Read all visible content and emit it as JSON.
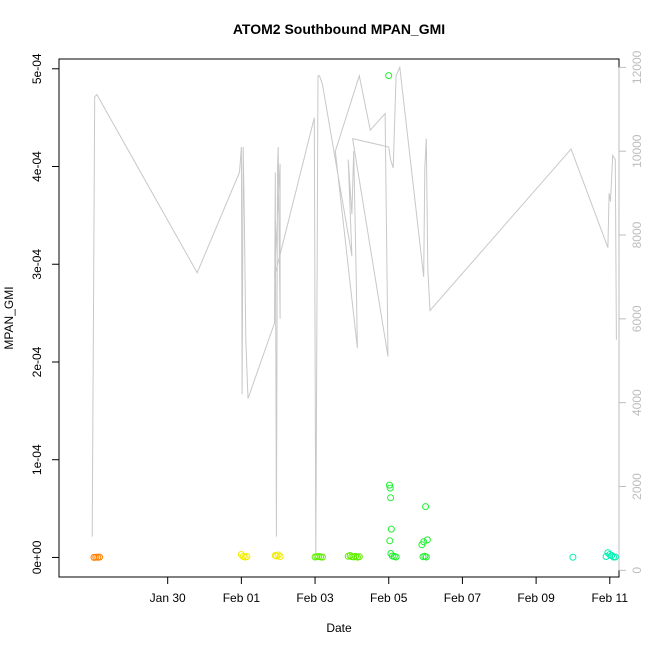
{
  "chart_data": {
    "type": "scatter",
    "title": "ATOM2 Southbound MPAN_GMI",
    "xlabel": "Date",
    "ylabel": "MPAN_GMI",
    "x_axis": {
      "min_day": -2.95,
      "max_day": 12.25,
      "ticks": [
        {
          "day": 0,
          "label": "Jan 30"
        },
        {
          "day": 2,
          "label": "Feb 01"
        },
        {
          "day": 4,
          "label": "Feb 03"
        },
        {
          "day": 6,
          "label": "Feb 05"
        },
        {
          "day": 8,
          "label": "Feb 07"
        },
        {
          "day": 10,
          "label": "Feb 09"
        },
        {
          "day": 12,
          "label": "Feb 11"
        }
      ]
    },
    "y_axis": {
      "min": -2e-05,
      "max": 0.00051,
      "ticks": [
        {
          "value": 0,
          "label": "0e+00"
        },
        {
          "value": 0.0001,
          "label": "1e-04"
        },
        {
          "value": 0.0002,
          "label": "2e-04"
        },
        {
          "value": 0.0003,
          "label": "3e-04"
        },
        {
          "value": 0.0004,
          "label": "4e-04"
        },
        {
          "value": 0.0005,
          "label": "5e-04"
        }
      ]
    },
    "y2_axis": {
      "min": -160,
      "max": 12200,
      "color": "#bdbdbd",
      "ticks": [
        {
          "value": 0,
          "label": "0"
        },
        {
          "value": 2000,
          "label": "2000"
        },
        {
          "value": 4000,
          "label": "4000"
        },
        {
          "value": 6000,
          "label": "6000"
        },
        {
          "value": 8000,
          "label": "8000"
        },
        {
          "value": 10000,
          "label": "10000"
        },
        {
          "value": 12000,
          "label": "12000"
        }
      ]
    },
    "line_series": {
      "color": "#c8c8c8",
      "axis": "y2",
      "points": [
        [
          -2.05,
          800
        ],
        [
          -1.98,
          11300
        ],
        [
          -1.92,
          11350
        ],
        [
          0.8,
          7100
        ],
        [
          1.95,
          9500
        ],
        [
          2.0,
          10100
        ],
        [
          2.02,
          4200
        ],
        [
          2.05,
          10100
        ],
        [
          2.08,
          8500
        ],
        [
          2.12,
          5500
        ],
        [
          2.18,
          4100
        ],
        [
          2.9,
          5900
        ],
        [
          2.92,
          9500
        ],
        [
          2.95,
          800
        ],
        [
          2.98,
          9600
        ],
        [
          3.0,
          10100
        ],
        [
          3.05,
          6000
        ],
        [
          3.05,
          9700
        ],
        [
          2.9,
          7000
        ],
        [
          3.98,
          10800
        ],
        [
          4.02,
          250
        ],
        [
          4.08,
          11800
        ],
        [
          4.12,
          11800
        ],
        [
          4.2,
          11600
        ],
        [
          5.0,
          7500
        ],
        [
          4.9,
          9800
        ],
        [
          5.0,
          8500
        ],
        [
          5.05,
          10000
        ],
        [
          5.12,
          6900
        ],
        [
          5.15,
          5300
        ],
        [
          4.55,
          10000
        ],
        [
          5.2,
          11800
        ],
        [
          5.5,
          10500
        ],
        [
          5.9,
          10900
        ],
        [
          5.98,
          5100
        ],
        [
          5.02,
          10300
        ],
        [
          6.0,
          10100
        ],
        [
          6.05,
          9800
        ],
        [
          6.12,
          9600
        ],
        [
          6.2,
          11800
        ],
        [
          6.3,
          12000
        ],
        [
          6.95,
          7000
        ],
        [
          6.98,
          9600
        ],
        [
          7.02,
          10300
        ],
        [
          7.06,
          7200
        ],
        [
          7.12,
          6200
        ],
        [
          10.95,
          10050
        ],
        [
          11.95,
          7700
        ],
        [
          11.98,
          9000
        ],
        [
          12.02,
          8800
        ],
        [
          12.08,
          9900
        ],
        [
          12.15,
          9800
        ],
        [
          12.18,
          5500
        ]
      ]
    },
    "scatter_series": [
      {
        "color": "#ff7f00",
        "points": [
          [
            -1.95,
            3e-07
          ],
          [
            -1.9,
            2e-07
          ],
          [
            -1.85,
            4e-07
          ],
          [
            -2.0,
            1e-07
          ]
        ]
      },
      {
        "color": "#f2ec00",
        "points": [
          [
            2.0,
            3e-06
          ],
          [
            2.05,
            1e-06
          ],
          [
            2.1,
            5e-07
          ],
          [
            2.15,
            1e-06
          ],
          [
            2.92,
            2e-06
          ],
          [
            2.95,
            1.5e-06
          ],
          [
            3.0,
            2.5e-06
          ],
          [
            3.05,
            1e-06
          ]
        ]
      },
      {
        "color": "#5fef00",
        "points": [
          [
            4.0,
            5e-07
          ],
          [
            4.05,
            8e-07
          ],
          [
            4.1,
            1e-06
          ],
          [
            4.15,
            6e-07
          ],
          [
            4.2,
            4e-07
          ],
          [
            4.9,
            1.2e-06
          ],
          [
            4.95,
            2e-06
          ],
          [
            5.0,
            9e-07
          ],
          [
            5.05,
            6e-07
          ],
          [
            5.1,
            1.1e-06
          ],
          [
            5.15,
            4e-07
          ],
          [
            5.2,
            8e-07
          ]
        ]
      },
      {
        "color": "#1ff031",
        "points": [
          [
            6.0,
            0.000493
          ],
          [
            6.02,
            7.4e-05
          ],
          [
            6.04,
            7.1e-05
          ],
          [
            6.05,
            6.1e-05
          ],
          [
            6.07,
            2.9e-05
          ],
          [
            6.03,
            1.7e-05
          ],
          [
            6.06,
            4e-06
          ],
          [
            6.1,
            1.5e-06
          ],
          [
            6.15,
            1e-06
          ],
          [
            6.2,
            5e-07
          ],
          [
            6.9,
            1.3e-05
          ],
          [
            6.95,
            1.6e-05
          ],
          [
            7.0,
            5.2e-05
          ],
          [
            7.05,
            1.8e-05
          ],
          [
            6.93,
            8e-07
          ],
          [
            6.98,
            1.2e-06
          ],
          [
            7.02,
            5e-07
          ]
        ]
      },
      {
        "color": "#00f0b2",
        "points": [
          [
            11.0,
            3e-07
          ],
          [
            11.95,
            5e-06
          ],
          [
            12.0,
            3e-06
          ],
          [
            12.05,
            2e-06
          ],
          [
            12.1,
            5e-07
          ],
          [
            11.9,
            1e-06
          ],
          [
            12.15,
            5e-07
          ]
        ]
      }
    ]
  }
}
